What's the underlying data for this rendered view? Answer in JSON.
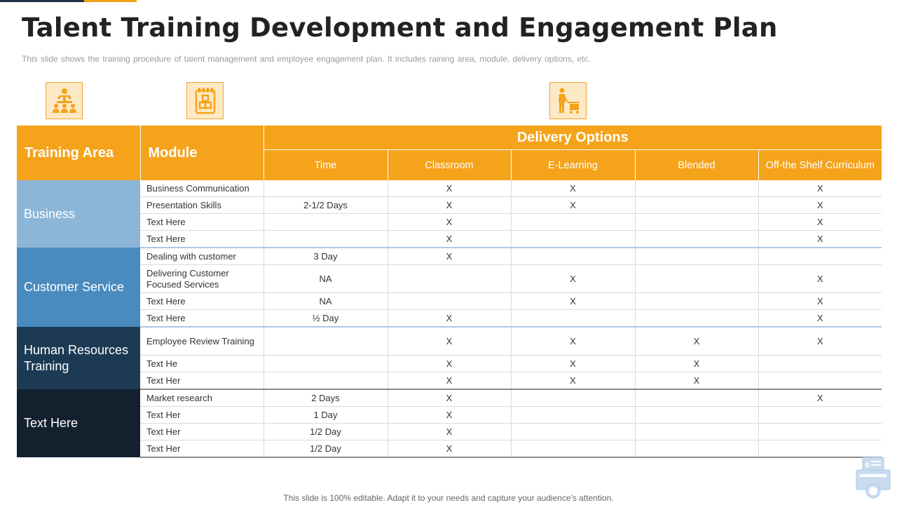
{
  "title": "Talent Training Development and Engagement Plan",
  "subtitle": "This slide shows the training procedure  of talent management  and  employee  engagement  plan.  It includes raining area,  module,  delivery  options,  etc.",
  "icons": [
    "team-training-icon",
    "module-blocks-icon",
    "delivery-cart-icon",
    "cash-register-icon"
  ],
  "colors": {
    "accent": "#f5a31a",
    "business": "#8bb6d8",
    "customer_service": "#4a8bbf",
    "human_resources": "#1d3a55",
    "text_here": "#13212e"
  },
  "table": {
    "header": {
      "training_area": "Training Area",
      "module": "Module",
      "delivery_options": "Delivery Options",
      "time": "Time",
      "classroom": "Classroom",
      "elearning": "E-Learning",
      "blended": "Blended",
      "off_shelf": "Off-the Shelf Curriculum"
    },
    "groups": [
      {
        "area": "Business",
        "rows": [
          {
            "module": "Business Communication",
            "time": "",
            "classroom": "X",
            "elearning": "X",
            "blended": "",
            "off_shelf": "X"
          },
          {
            "module": "Presentation Skills",
            "time": "2-1/2 Days",
            "classroom": "X",
            "elearning": "X",
            "blended": "",
            "off_shelf": "X"
          },
          {
            "module": "Text Here",
            "time": "",
            "classroom": "X",
            "elearning": "",
            "blended": "",
            "off_shelf": "X"
          },
          {
            "module": "Text Here",
            "time": "",
            "classroom": "X",
            "elearning": "",
            "blended": "",
            "off_shelf": "X"
          }
        ]
      },
      {
        "area": "Customer Service",
        "rows": [
          {
            "module": "Dealing with customer",
            "time": "3 Day",
            "classroom": "X",
            "elearning": "",
            "blended": "",
            "off_shelf": ""
          },
          {
            "module": "Delivering  Customer Focused Services",
            "time": "NA",
            "classroom": "",
            "elearning": "X",
            "blended": "",
            "off_shelf": "X"
          },
          {
            "module": "Text Here",
            "time": "NA",
            "classroom": "",
            "elearning": "X",
            "blended": "",
            "off_shelf": "X"
          },
          {
            "module": "Text Here",
            "time": "½ Day",
            "classroom": "X",
            "elearning": "",
            "blended": "",
            "off_shelf": "X"
          }
        ]
      },
      {
        "area": "Human Resources Training",
        "rows": [
          {
            "module": "Employee Review Training",
            "time": "",
            "classroom": "X",
            "elearning": "X",
            "blended": "X",
            "off_shelf": "X"
          },
          {
            "module": "Text He",
            "time": "",
            "classroom": "X",
            "elearning": "X",
            "blended": "X",
            "off_shelf": ""
          },
          {
            "module": "Text Her",
            "time": "",
            "classroom": "X",
            "elearning": "X",
            "blended": "X",
            "off_shelf": ""
          }
        ]
      },
      {
        "area": "Text Here",
        "rows": [
          {
            "module": "Market research",
            "time": "2 Days",
            "classroom": "X",
            "elearning": "",
            "blended": "",
            "off_shelf": "X"
          },
          {
            "module": "Text Her",
            "time": "1 Day",
            "classroom": "X",
            "elearning": "",
            "blended": "",
            "off_shelf": ""
          },
          {
            "module": "Text Her",
            "time": "1/2  Day",
            "classroom": "X",
            "elearning": "",
            "blended": "",
            "off_shelf": ""
          },
          {
            "module": "Text Her",
            "time": "1/2  Day",
            "classroom": "X",
            "elearning": "",
            "blended": "",
            "off_shelf": ""
          }
        ]
      }
    ]
  },
  "footer": "This slide is 100% editable. Adapt it to your needs and capture your audience's attention."
}
